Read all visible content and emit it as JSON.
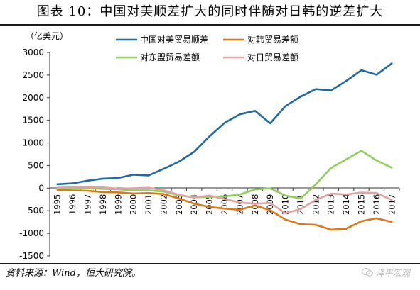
{
  "header": {
    "title": "图表 10：中国对美顺差扩大的同时伴随对日韩的逆差扩大"
  },
  "footer": {
    "source": "资料来源：Wind，恒大研究院。",
    "watermark": "泽平宏观"
  },
  "colors": {
    "china_us": "#1f6aa5",
    "korea": "#d9781a",
    "asean": "#8fce5a",
    "japan": "#e0a3a3"
  },
  "icons": {
    "watermark": "wechat-icon"
  },
  "chart_data": {
    "type": "line",
    "title": "",
    "ylabel": "（亿美元）",
    "xlabel": "",
    "ylim": [
      -1500,
      3000
    ],
    "yticks": [
      -1500,
      -1000,
      -500,
      0,
      500,
      1000,
      1500,
      2000,
      2500,
      3000
    ],
    "categories": [
      "1995",
      "1996",
      "1997",
      "1998",
      "1999",
      "2000",
      "2001",
      "2002",
      "2003",
      "2004",
      "2005",
      "2006",
      "2007",
      "2008",
      "2009",
      "2010",
      "2011",
      "2012",
      "2013",
      "2014",
      "2015",
      "2016",
      "2017"
    ],
    "legend_placement": "top",
    "series": [
      {
        "name": "中国对美贸易顺差",
        "color": "#1f6aa5",
        "values": [
          86,
          105,
          165,
          210,
          225,
          297,
          281,
          427,
          586,
          803,
          1142,
          1443,
          1633,
          1710,
          1433,
          1813,
          2023,
          2189,
          2159,
          2370,
          2608,
          2507,
          2758
        ]
      },
      {
        "name": "对韩贸易差额",
        "color": "#d9781a",
        "values": [
          -36,
          -50,
          -58,
          -89,
          -94,
          -119,
          -109,
          -131,
          -230,
          -344,
          -417,
          -452,
          -479,
          -382,
          -488,
          -696,
          -798,
          -811,
          -919,
          -898,
          -732,
          -667,
          -749
        ]
      },
      {
        "name": "对东盟贸易差额",
        "color": "#8fce5a",
        "values": [
          5,
          -11,
          -4,
          -16,
          -25,
          -48,
          -48,
          -76,
          -164,
          -201,
          -196,
          -182,
          -142,
          -29,
          -4,
          -164,
          -228,
          84,
          445,
          637,
          826,
          612,
          450
        ]
      },
      {
        "name": "对日贸易差额",
        "color": "#e0a3a3",
        "values": [
          10,
          17,
          31,
          18,
          -14,
          -3,
          9,
          -50,
          -147,
          -208,
          -164,
          -241,
          -319,
          -345,
          -329,
          -556,
          -463,
          -262,
          -120,
          -141,
          -98,
          -107,
          -263
        ]
      }
    ]
  }
}
